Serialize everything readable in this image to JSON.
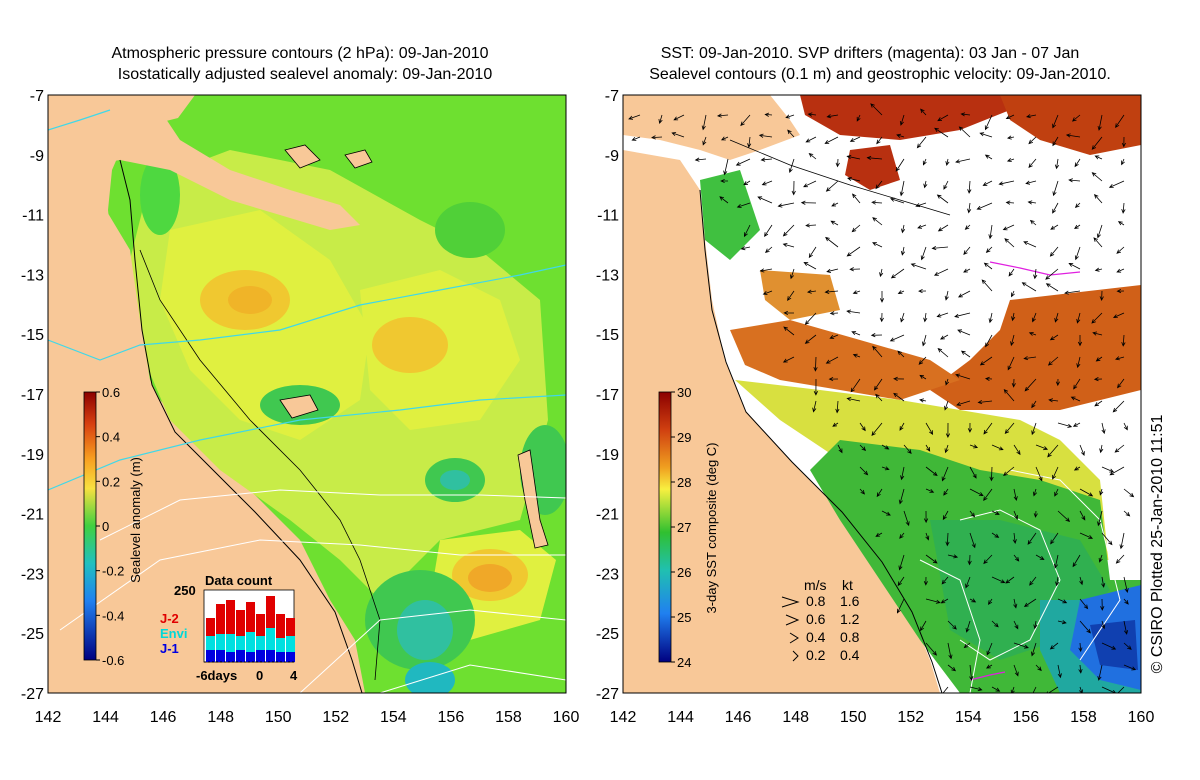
{
  "left_panel": {
    "title_line1": "Atmospheric pressure contours (2 hPa): 09-Jan-2010",
    "title_line2": "Isostatically adjusted sealevel anomaly: 09-Jan-2010",
    "colorbar": {
      "label": "Sealevel anomaly (m)",
      "ticks": [
        "0.6",
        "0.4",
        "0.2",
        "0",
        "-0.2",
        "-0.4",
        "-0.6"
      ]
    },
    "inset": {
      "title": "Data count",
      "ymax_label": "250",
      "x_labels": [
        "-6days",
        "0",
        "4"
      ],
      "legend": [
        {
          "label": "J-2",
          "color": "#e00000"
        },
        {
          "label": "Envi",
          "color": "#00e0e0"
        },
        {
          "label": "J-1",
          "color": "#0000e0"
        }
      ]
    }
  },
  "right_panel": {
    "title_line1": "SST: 09-Jan-2010. SVP drifters (magenta): 03 Jan - 07 Jan",
    "title_line2": "Sealevel contours (0.1 m) and geostrophic velocity: 09-Jan-2010.",
    "colorbar": {
      "label": "3-day SST composite (deg C)",
      "ticks": [
        "30",
        "29",
        "28",
        "27",
        "26",
        "25",
        "24"
      ]
    },
    "velocity_legend": {
      "header_ms": "m/s",
      "header_kt": "kt",
      "rows": [
        {
          "ms": "0.8",
          "kt": "1.6"
        },
        {
          "ms": "0.6",
          "kt": "1.2"
        },
        {
          "ms": "0.4",
          "kt": "0.8"
        },
        {
          "ms": "0.2",
          "kt": "0.4"
        }
      ]
    }
  },
  "axes": {
    "lat_labels": [
      "-7",
      "-9",
      "-11",
      "-13",
      "-15",
      "-17",
      "-19",
      "-21",
      "-23",
      "-25",
      "-27"
    ],
    "lon_labels": [
      "142",
      "144",
      "146",
      "148",
      "150",
      "152",
      "154",
      "156",
      "158",
      "160"
    ]
  },
  "credit": "© CSIRO Plotted 25-Jan-2010 11:51",
  "colors": {
    "land": "#f8c898",
    "ocean_green": "#6ee030",
    "ocean_yellow": "#d8f040",
    "warm": "#f0b020",
    "cyan_contour": "#40d8e8"
  }
}
